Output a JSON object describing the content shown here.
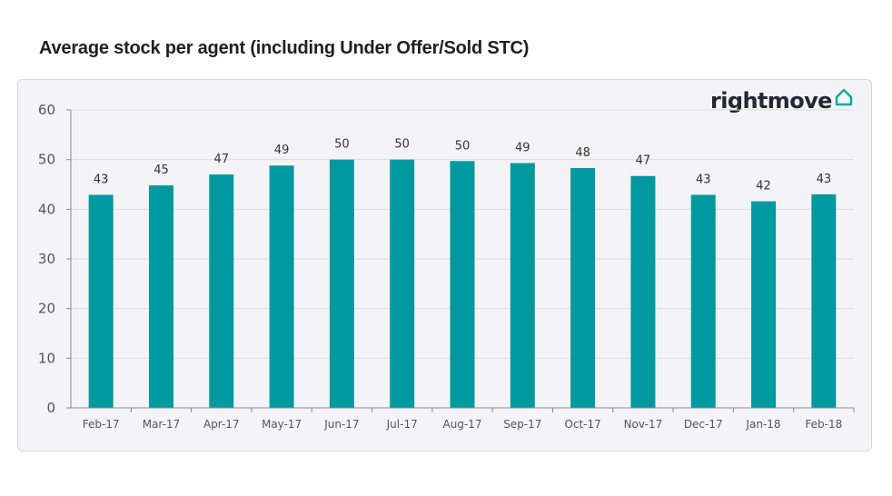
{
  "title": "Average stock per agent (including Under Offer/Sold STC)",
  "logo": {
    "text": "rightmove",
    "icon": "house-outline-icon",
    "accent": "#00a99d"
  },
  "chart_data": {
    "type": "bar",
    "title": "Average stock per agent (including Under Offer/Sold STC)",
    "xlabel": "",
    "ylabel": "",
    "categories": [
      "Feb-17",
      "Mar-17",
      "Apr-17",
      "May-17",
      "Jun-17",
      "Jul-17",
      "Aug-17",
      "Sep-17",
      "Oct-17",
      "Nov-17",
      "Dec-17",
      "Jan-18",
      "Feb-18"
    ],
    "values": [
      43,
      45,
      47,
      49,
      50,
      50,
      50,
      49,
      48,
      47,
      43,
      42,
      43
    ],
    "bar_heights_exact": [
      42.9,
      44.8,
      47.0,
      48.8,
      50.0,
      50.0,
      49.7,
      49.3,
      48.3,
      46.7,
      42.9,
      41.6,
      43.0
    ],
    "yticks": [
      0,
      10,
      20,
      30,
      40,
      50,
      60
    ],
    "ylim": [
      0,
      60
    ],
    "grid": true,
    "legend": "none",
    "bar_color": "#00999f"
  }
}
